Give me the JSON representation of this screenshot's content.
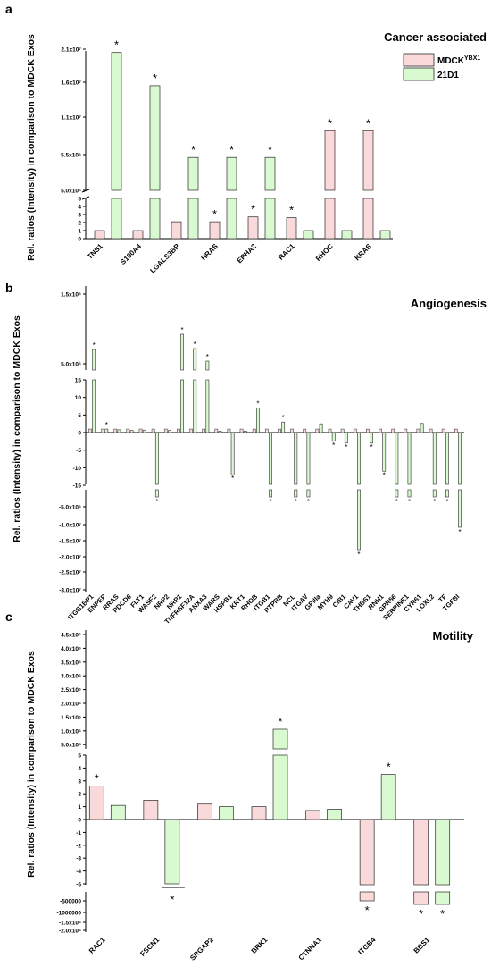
{
  "colors": {
    "mdck": "#f9d9d9",
    "d21": "#d9f9d0",
    "edge": "#2a2a2a"
  },
  "chart_data": [
    {
      "panel_letter": "a",
      "type": "bar",
      "title": "Cancer associated",
      "ylabel": "Rel. ratios (Intensity) in comparison to MDCK Exos",
      "legend_position": "top-right",
      "legend": [
        "MDCKYBX1",
        "21D1"
      ],
      "categories": [
        "TNS1",
        "S100A4",
        "LGALS3BP",
        "HRAS",
        "EPHA2",
        "RAC1",
        "RHOC",
        "KRAS"
      ],
      "ylim_lower": [
        0,
        5
      ],
      "ylim_upper": [
        5000000,
        21000000
      ],
      "ticks_lower": [
        "0",
        "1",
        "2",
        "3",
        "4",
        "5"
      ],
      "ticks_upper": [
        "5.0x10⁵",
        "5.5x10⁶",
        "1.1x10⁷",
        "1.6x10⁷",
        "2.1x10⁷"
      ],
      "series": [
        {
          "name": "MDCKYBX1",
          "values": [
            1,
            1,
            2.1,
            2.1,
            2.7,
            2.6,
            9000000,
            9000000
          ],
          "stars": [
            false,
            false,
            false,
            true,
            true,
            true,
            true,
            true
          ]
        },
        {
          "name": "21D1",
          "values": [
            20500000,
            15500000,
            5100000,
            5100000,
            5100000,
            1.0,
            1.0,
            1.0
          ],
          "stars": [
            true,
            true,
            true,
            true,
            true,
            false,
            false,
            false
          ]
        }
      ]
    },
    {
      "panel_letter": "b",
      "type": "bar",
      "title": "Angiogenesis",
      "ylabel": "Rel. ratios (Intensity) in comparison to MDCK Exos",
      "categories": [
        "ITGB1BP1",
        "ENPEP",
        "RRAS",
        "PDCD6",
        "FLT1",
        "WASF2",
        "NRP2",
        "NRP1",
        "TNFRSF12A",
        "ANXA3",
        "WARS",
        "HSPB1",
        "KRT1",
        "RHOB",
        "ITGB1",
        "PTPRB",
        "NCL",
        "ITGAV",
        "GPIIIa",
        "MYH9",
        "CIB1",
        "CAV1",
        "THBS1",
        "RNH1",
        "GPR56",
        "SERPINE1",
        "CYR61",
        "LOXL2",
        "TF",
        "TGFBI"
      ],
      "ticks_top": [
        "5.0x10⁵",
        "1.5x10⁶"
      ],
      "ticks_mid": [
        "15",
        "10",
        "5",
        "0",
        "-5",
        "-10",
        "-15"
      ],
      "ticks_bottom": [
        "-5.0x10⁶",
        "-1.0x10⁷",
        "-1.5x10⁷",
        "-2.0x10⁷",
        "-2.5x10⁷",
        "-3.0x10⁷"
      ],
      "values": [
        400000,
        1,
        0.8,
        0.6,
        0.7,
        -1600000,
        0.6,
        900000,
        400000,
        300000,
        0.4,
        -12,
        0.4,
        7,
        -1600000,
        3,
        -1600000,
        -1600000,
        2.5,
        -2.5,
        -3,
        -21000000,
        -3,
        -11,
        -1600000,
        -1600000,
        2.6,
        -1600000,
        -1600000,
        -13000000
      ],
      "stars": [
        true,
        true,
        false,
        false,
        false,
        true,
        false,
        true,
        true,
        true,
        false,
        true,
        false,
        true,
        true,
        true,
        true,
        true,
        false,
        true,
        true,
        true,
        true,
        true,
        true,
        true,
        false,
        true,
        true,
        true
      ]
    },
    {
      "panel_letter": "c",
      "type": "bar",
      "title": "Motility",
      "ylabel": "Rel. ratios (Intensity) in comparison to MDCK Exos",
      "categories": [
        "RAC1",
        "FSCN1",
        "SRGAP2",
        "BRK1",
        "CTNNA1",
        "ITGB4",
        "BBS1"
      ],
      "ticks_upper": [
        "4.5x10⁶",
        "4.0x10⁶",
        "3.5x10⁶",
        "3.0x10⁶",
        "2.5x10⁶",
        "2.0x10⁶",
        "1.5x10⁶",
        "1.0x10⁶",
        "5.0x10⁵"
      ],
      "ticks_mid": [
        "5",
        "4",
        "3",
        "2",
        "1",
        "0",
        "-1",
        "-2",
        "-3",
        "-4",
        "-5"
      ],
      "ticks_lower": [
        "-500000",
        "-1000000",
        "-1.5x10⁶",
        "-2.0x10⁶"
      ],
      "series": [
        {
          "name": "MDCKYBX1",
          "values": [
            2.6,
            1.5,
            1.2,
            1.0,
            0.7,
            -600000,
            -700000
          ],
          "stars": [
            true,
            false,
            false,
            false,
            false,
            true,
            true
          ]
        },
        {
          "name": "21D1",
          "values": [
            1.1,
            -5,
            1.0,
            550000,
            0.8,
            3.5,
            -700000
          ],
          "stars": [
            false,
            true,
            false,
            true,
            false,
            true,
            true
          ]
        }
      ]
    }
  ]
}
